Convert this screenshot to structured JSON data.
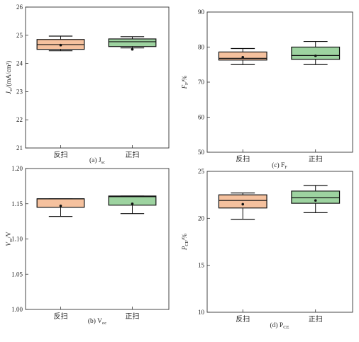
{
  "chart_data": [
    {
      "type": "box",
      "caption": "(a) J",
      "caption_sub": "sc",
      "ylabel": "J",
      "ylabel_sub": "sc",
      "ylabel_unit": "/(mA/cm²)",
      "ylim": [
        21,
        26
      ],
      "yticks": [
        21,
        22,
        23,
        24,
        25,
        26
      ],
      "categories": [
        "反扫",
        "正扫"
      ],
      "boxes": [
        {
          "whisker_low": 24.45,
          "q1": 24.5,
          "median": 24.67,
          "q3": 24.85,
          "whisker_high": 24.97,
          "mean": 24.65,
          "color": "#f5c19e"
        },
        {
          "whisker_low": 24.55,
          "q1": 24.6,
          "median": 24.77,
          "q3": 24.87,
          "whisker_high": 24.95,
          "mean": 24.5,
          "color": "#9dd3a0"
        }
      ]
    },
    {
      "type": "box",
      "caption": "(c) F",
      "caption_sub": "F",
      "ylabel": "F",
      "ylabel_sub": "F",
      "ylabel_unit": "/%",
      "ylim": [
        50,
        90
      ],
      "yticks": [
        50,
        60,
        70,
        80,
        90
      ],
      "categories": [
        "反扫",
        "正扫"
      ],
      "boxes": [
        {
          "whisker_low": 75,
          "q1": 76.3,
          "median": 76.8,
          "q3": 78.6,
          "whisker_high": 79.6,
          "mean": 77.1,
          "color": "#f5c19e"
        },
        {
          "whisker_low": 75,
          "q1": 76.5,
          "median": 77.6,
          "q3": 80,
          "whisker_high": 81.6,
          "mean": 77.5,
          "color": "#9dd3a0"
        }
      ]
    },
    {
      "type": "box",
      "caption": "(b) V",
      "caption_sub": "oc",
      "ylabel": "V",
      "ylabel_sub": "oc",
      "ylabel_unit": "/V",
      "ylim": [
        1.0,
        1.2
      ],
      "yticks": [
        "1.00",
        "1.05",
        "1.10",
        "1.15",
        "1.20"
      ],
      "categories": [
        "反扫",
        "正扫"
      ],
      "boxes": [
        {
          "whisker_low": 1.132,
          "q1": 1.145,
          "median": 1.157,
          "q3": 1.157,
          "whisker_high": 1.157,
          "mean": 1.147,
          "color": "#f5c19e"
        },
        {
          "whisker_low": 1.136,
          "q1": 1.148,
          "median": 1.16,
          "q3": 1.161,
          "whisker_high": 1.161,
          "mean": 1.15,
          "color": "#9dd3a0"
        }
      ]
    },
    {
      "type": "box",
      "caption": "(d) P",
      "caption_sub": "CE",
      "ylabel": "P",
      "ylabel_sub": "CE",
      "ylabel_unit": "/%",
      "ylim": [
        10,
        25
      ],
      "yticks": [
        10,
        15,
        20,
        25
      ],
      "categories": [
        "反扫",
        "正扫"
      ],
      "boxes": [
        {
          "whisker_low": 19.9,
          "q1": 21.1,
          "median": 21.9,
          "q3": 22.5,
          "whisker_high": 22.7,
          "mean": 21.5,
          "color": "#f5c19e"
        },
        {
          "whisker_low": 20.6,
          "q1": 21.6,
          "median": 22.2,
          "q3": 22.9,
          "whisker_high": 23.5,
          "mean": 21.9,
          "color": "#9dd3a0"
        }
      ]
    }
  ]
}
